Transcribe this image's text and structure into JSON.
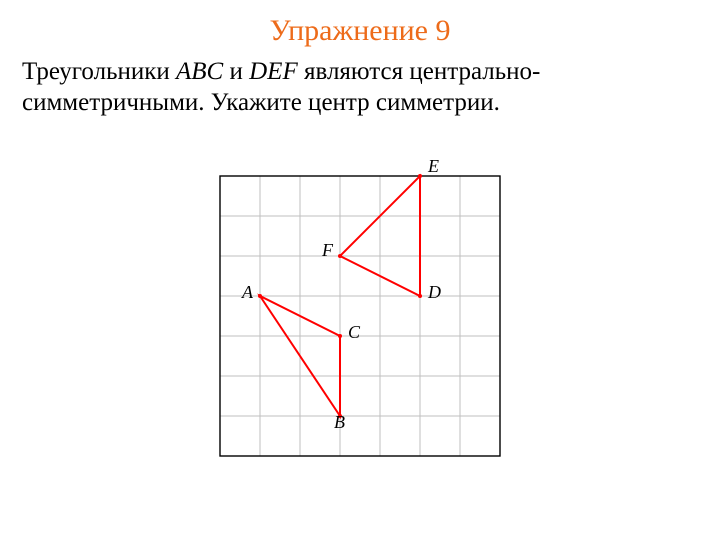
{
  "title": {
    "text": "Упражнение 9",
    "color": "#ed6b1a",
    "fontsize": 30
  },
  "body": {
    "line1_pre": "Треугольники ",
    "abc": "ABC",
    "line1_mid": " и ",
    "def": "DEF",
    "line1_post": " являются центрально-симметричными. Укажите центр симметрии.",
    "color": "#000000",
    "fontsize": 25
  },
  "diagram": {
    "type": "grid-with-polylines",
    "grid": {
      "cols": 7,
      "rows": 7,
      "cell": 40,
      "frame_color": "#000000",
      "grid_color": "#bfbfbf",
      "frame_width": 1.4,
      "grid_width": 1,
      "background": "#ffffff"
    },
    "points": {
      "A": {
        "gx": 1,
        "gy": 3,
        "label_dx": -18,
        "label_dy": -4
      },
      "B": {
        "gx": 3,
        "gy": 6,
        "label_dx": -6,
        "label_dy": 6
      },
      "C": {
        "gx": 3,
        "gy": 4,
        "label_dx": 8,
        "label_dy": -4
      },
      "D": {
        "gx": 5,
        "gy": 3,
        "label_dx": 8,
        "label_dy": -4
      },
      "E": {
        "gx": 5,
        "gy": 0,
        "label_dx": 8,
        "label_dy": -10
      },
      "F": {
        "gx": 3,
        "gy": 2,
        "label_dx": -18,
        "label_dy": -6
      }
    },
    "triangles": [
      {
        "vertices": [
          "A",
          "B",
          "C"
        ],
        "stroke": "#ff0000",
        "width": 2
      },
      {
        "vertices": [
          "D",
          "E",
          "F"
        ],
        "stroke": "#ff0000",
        "width": 2
      }
    ],
    "label_fontsize": 18,
    "label_color": "#000000"
  }
}
